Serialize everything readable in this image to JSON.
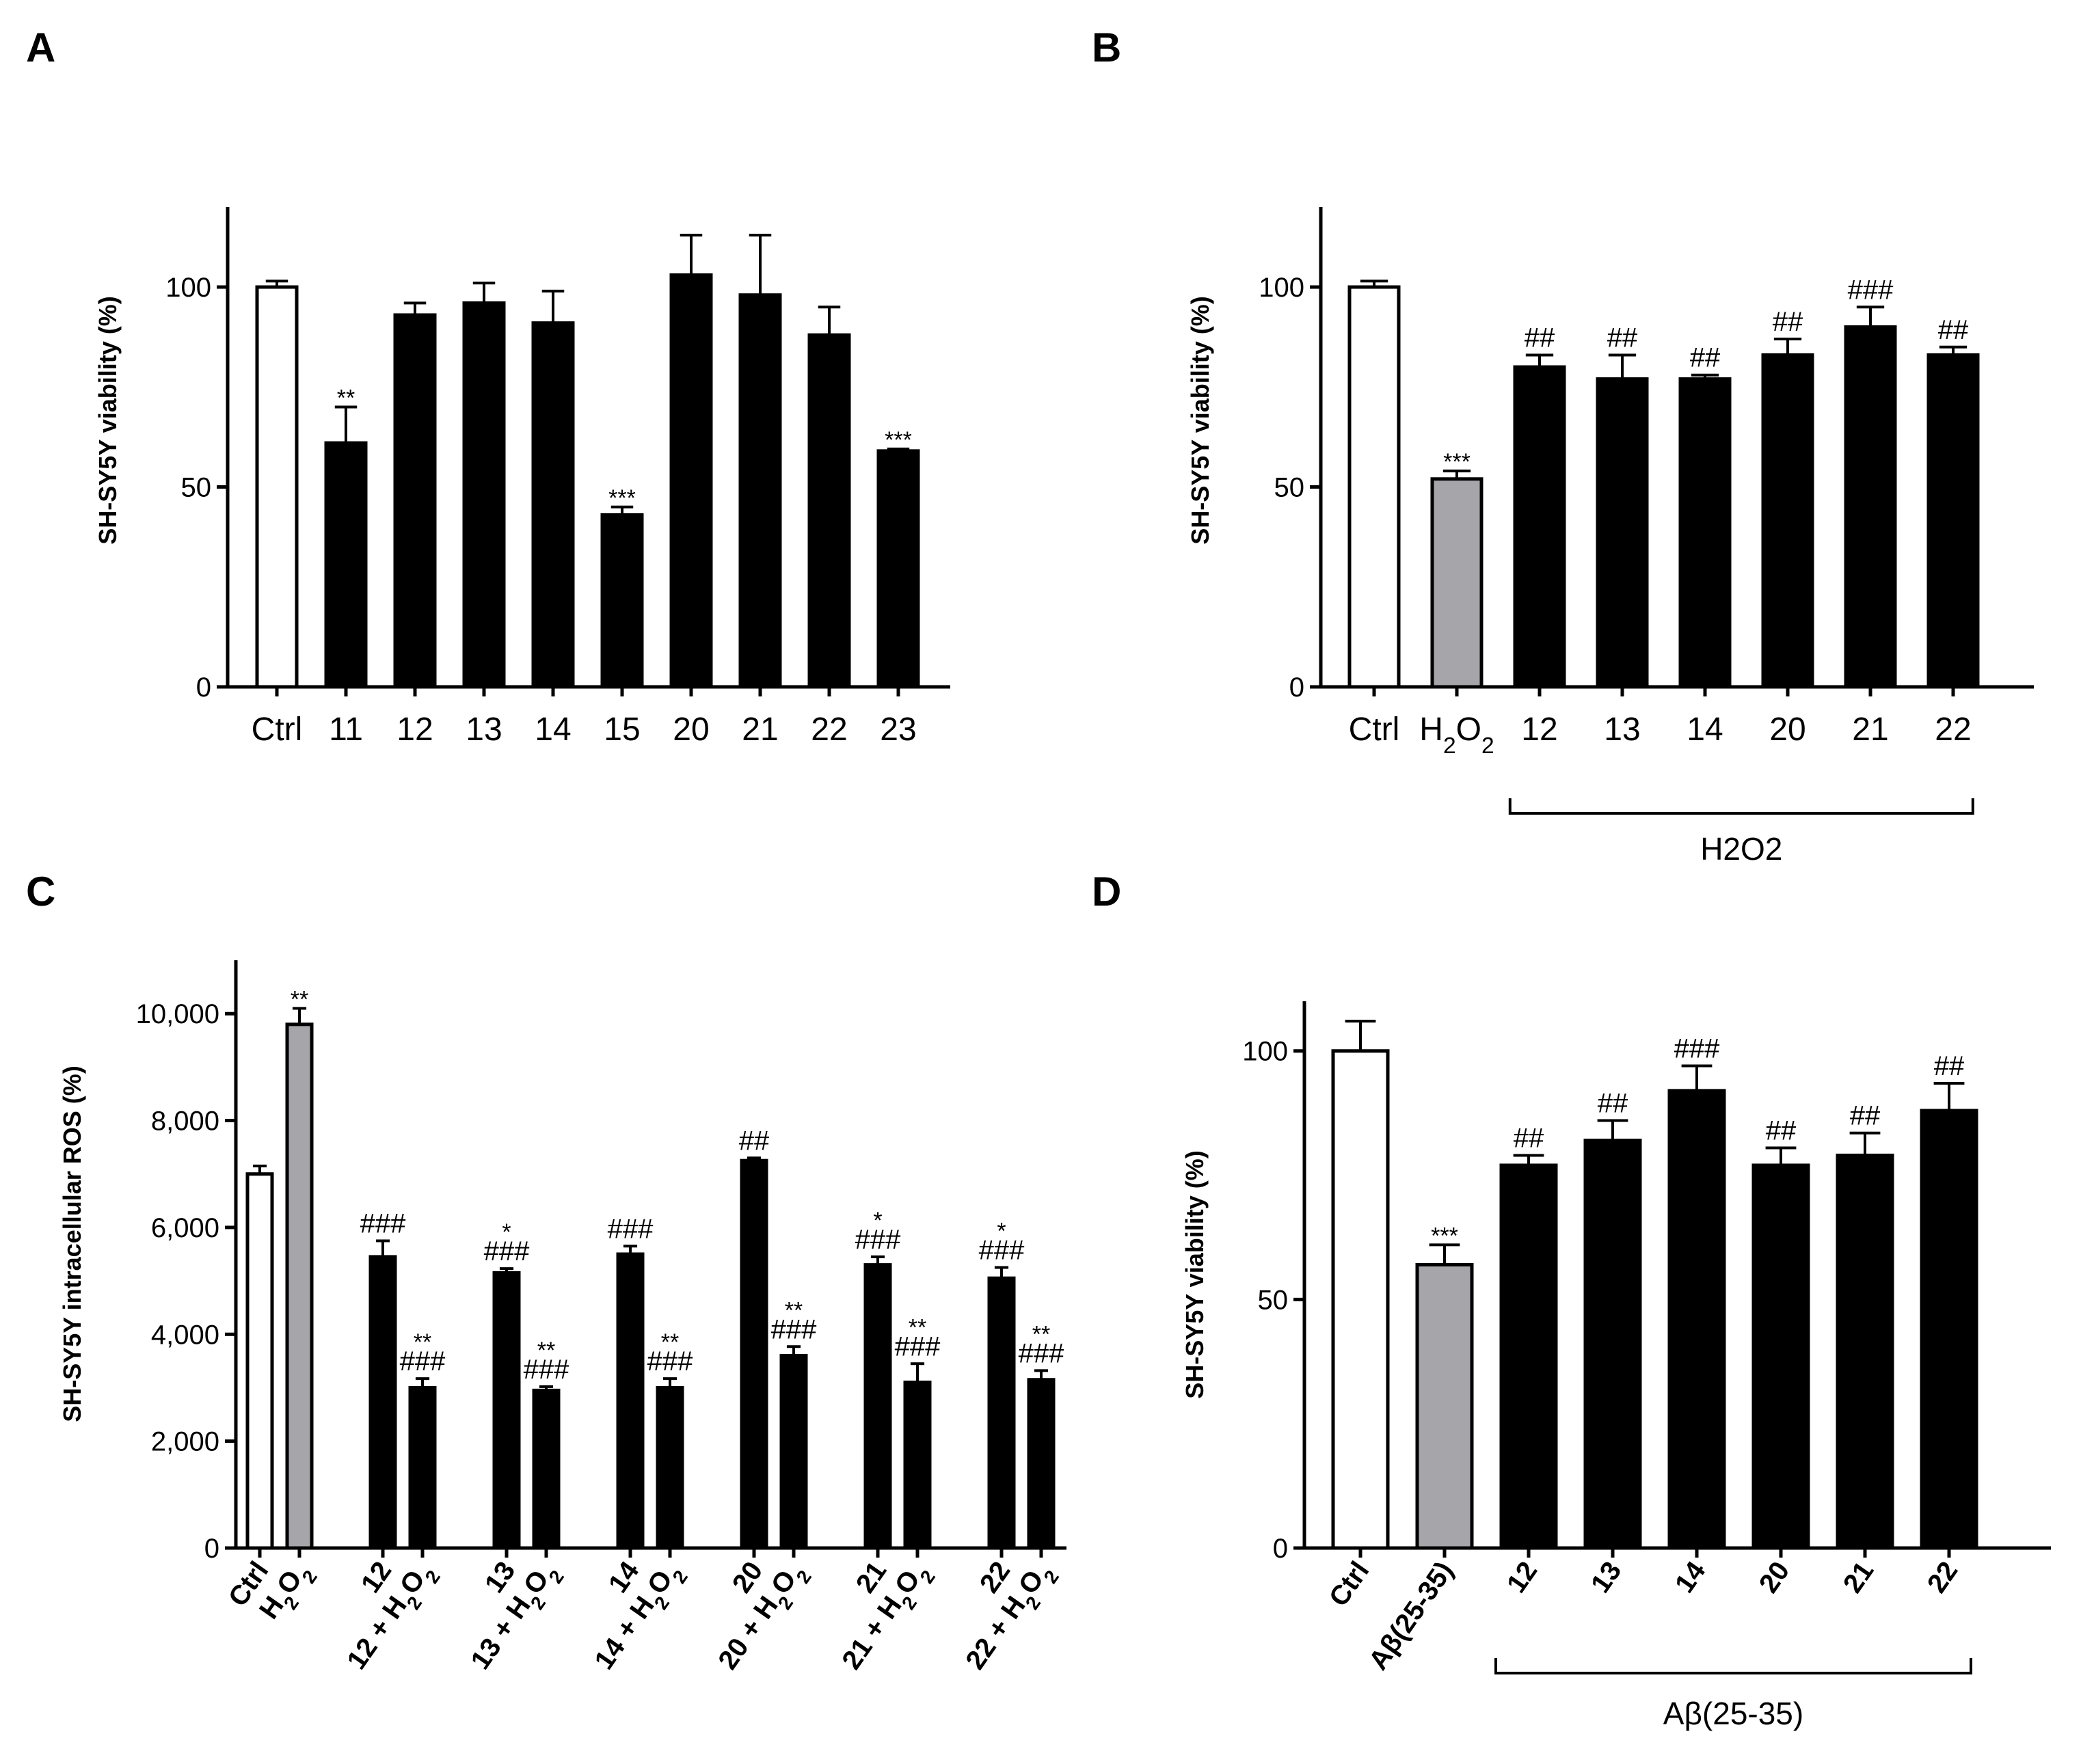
{
  "panels": {
    "A": {
      "letter": "A"
    },
    "B": {
      "letter": "B"
    },
    "C": {
      "letter": "C"
    },
    "D": {
      "letter": "D"
    }
  },
  "colors": {
    "ctrl": "#ffffff",
    "insult": "#a6a6aa",
    "treated": "#000000",
    "outline": "#000000"
  },
  "chart_data": [
    {
      "id": "A",
      "type": "bar",
      "title": "",
      "ylabel": "SH-SY5Y viability (%)",
      "ylim": [
        0,
        120
      ],
      "yticks": [
        0,
        50,
        100
      ],
      "ytick_labels": [
        "0",
        "50",
        "100"
      ],
      "categories": [
        "Ctrl",
        "11",
        "12",
        "13",
        "14",
        "15",
        "20",
        "21",
        "22",
        "23"
      ],
      "values": [
        100,
        61,
        93,
        96,
        91,
        43,
        103,
        98,
        88,
        59
      ],
      "errors": [
        1.5,
        9,
        3,
        5,
        8,
        2,
        10,
        15,
        7,
        0.5
      ],
      "fills": [
        "ctrl",
        "treated",
        "treated",
        "treated",
        "treated",
        "treated",
        "treated",
        "treated",
        "treated",
        "treated"
      ],
      "annotations": [
        "",
        "**",
        "",
        "",
        "",
        "***",
        "",
        "",
        "",
        "***"
      ]
    },
    {
      "id": "B",
      "type": "bar",
      "title": "",
      "ylabel": "SH-SY5Y viability (%)",
      "ylim": [
        0,
        120
      ],
      "yticks": [
        0,
        50,
        100
      ],
      "ytick_labels": [
        "0",
        "50",
        "100"
      ],
      "categories": [
        "Ctrl",
        "H2O2",
        "12",
        "13",
        "14",
        "20",
        "21",
        "22"
      ],
      "values": [
        100,
        52,
        80,
        77,
        77,
        83,
        90,
        83
      ],
      "errors": [
        1.5,
        2,
        3,
        6,
        1,
        4,
        5,
        2
      ],
      "fills": [
        "ctrl",
        "insult",
        "treated",
        "treated",
        "treated",
        "treated",
        "treated",
        "treated"
      ],
      "annotations": [
        "",
        "***",
        "##",
        "##",
        "##",
        "##",
        "###",
        "##"
      ],
      "group_bracket": {
        "label": "H2O2",
        "from_index": 2,
        "to_index": 7
      }
    },
    {
      "id": "C",
      "type": "bar",
      "title": "",
      "ylabel": "SH-SY5Y intracellular ROS (%)",
      "ylim": [
        0,
        11000
      ],
      "yticks": [
        0,
        2000,
        4000,
        6000,
        8000,
        10000
      ],
      "ytick_labels": [
        "0",
        "2,000",
        "4,000",
        "6,000",
        "8,000",
        "10,000"
      ],
      "categories": [
        "Ctrl",
        "H2O2",
        "12",
        "12 + H2O2",
        "13",
        "13 + H2O2",
        "14",
        "14 + H2O2",
        "20",
        "20 + H2O2",
        "21",
        "21 + H2O2",
        "22",
        "22 + H2O2"
      ],
      "values": [
        7000,
        9800,
        5450,
        3000,
        5150,
        2950,
        5500,
        3000,
        7250,
        3600,
        5300,
        3100,
        5050,
        3150
      ],
      "errors": [
        150,
        300,
        300,
        170,
        80,
        70,
        150,
        170,
        50,
        170,
        150,
        350,
        200,
        170
      ],
      "fills": [
        "ctrl",
        "insult",
        "treated",
        "treated",
        "treated",
        "treated",
        "treated",
        "treated",
        "treated",
        "treated",
        "treated",
        "treated",
        "treated",
        "treated"
      ],
      "annotations": [
        "",
        "**",
        "###",
        "###",
        "###",
        "###",
        "###",
        "###",
        "##",
        "###",
        "###",
        "###",
        "###",
        "###"
      ],
      "annotations_top": [
        "",
        "",
        "",
        "**",
        "*",
        "**",
        "",
        "**",
        "",
        "**",
        "*",
        "**",
        "*",
        "**"
      ]
    },
    {
      "id": "D",
      "type": "bar",
      "title": "",
      "ylabel": "SH-SY5Y viability (%)",
      "ylim": [
        0,
        110
      ],
      "yticks": [
        0,
        50,
        100
      ],
      "ytick_labels": [
        "0",
        "50",
        "100"
      ],
      "categories": [
        "Ctrl",
        "Aβ(25-35)",
        "12",
        "13",
        "14",
        "20",
        "21",
        "22"
      ],
      "values": [
        100,
        57,
        77,
        82,
        92,
        77,
        79,
        88
      ],
      "errors": [
        6,
        4,
        2,
        4,
        5,
        3.5,
        4.5,
        5.5
      ],
      "fills": [
        "ctrl",
        "insult",
        "treated",
        "treated",
        "treated",
        "treated",
        "treated",
        "treated"
      ],
      "annotations": [
        "",
        "***",
        "##",
        "##",
        "###",
        "##",
        "##",
        "##"
      ],
      "group_bracket": {
        "label": "Aβ(25-35)",
        "from_index": 2,
        "to_index": 7
      }
    }
  ]
}
